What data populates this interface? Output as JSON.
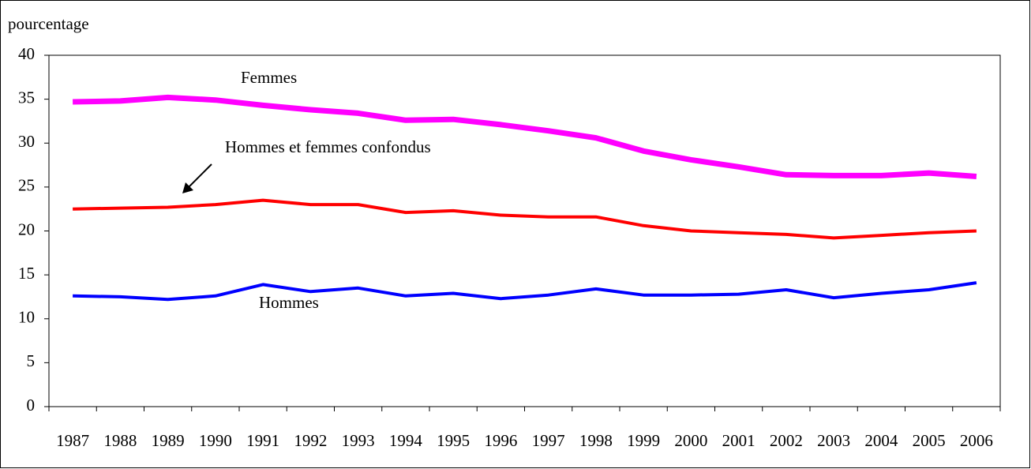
{
  "chart_data": {
    "type": "line",
    "ylabel": "pourcentage",
    "categories": [
      "1987",
      "1988",
      "1989",
      "1990",
      "1991",
      "1992",
      "1993",
      "1994",
      "1995",
      "1996",
      "1997",
      "1998",
      "1999",
      "2000",
      "2001",
      "2002",
      "2003",
      "2004",
      "2005",
      "2006"
    ],
    "series": [
      {
        "name": "Femmes",
        "color": "#ff00ff",
        "values": [
          34.7,
          34.8,
          35.2,
          34.9,
          34.3,
          33.8,
          33.4,
          32.6,
          32.7,
          32.1,
          31.4,
          30.6,
          29.1,
          28.1,
          27.3,
          26.4,
          26.3,
          26.3,
          26.6,
          26.2
        ]
      },
      {
        "name": "Hommes et femmes confondus",
        "color": "#ff0000",
        "values": [
          22.5,
          22.6,
          22.7,
          23.0,
          23.5,
          23.0,
          23.0,
          22.1,
          22.3,
          21.8,
          21.6,
          21.6,
          20.6,
          20.0,
          19.8,
          19.6,
          19.2,
          19.5,
          19.8,
          20.0
        ]
      },
      {
        "name": "Hommes",
        "color": "#0000ff",
        "values": [
          12.6,
          12.5,
          12.2,
          12.6,
          13.9,
          13.1,
          13.5,
          12.6,
          12.9,
          12.3,
          12.7,
          13.4,
          12.7,
          12.7,
          12.8,
          13.3,
          12.4,
          12.9,
          13.3,
          14.1
        ]
      }
    ],
    "ylim": [
      0,
      40
    ],
    "yticks": [
      0,
      5,
      10,
      15,
      20,
      25,
      30,
      35,
      40
    ]
  }
}
